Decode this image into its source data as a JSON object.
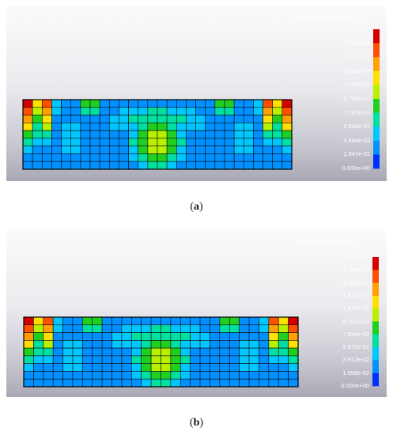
{
  "figures": [
    {
      "id": "a",
      "caption_letter": "a",
      "legend_title": "Resultant Displacement",
      "legend_ticks": [
        "1.947e-01",
        "1.752e-01",
        "1.557e-01",
        "1.363e-01",
        "1.168e-01",
        "9.734e-02",
        "7.787e-02",
        "5.840e-02",
        "3.894e-02",
        "1.947e-02",
        "0.000e+00"
      ],
      "colors": [
        "#d40000",
        "#ff5000",
        "#ffa000",
        "#ffe000",
        "#b8f000",
        "#20d020",
        "#00e0a0",
        "#00c8ff",
        "#0090ff",
        "#0030ff"
      ]
    },
    {
      "id": "b",
      "caption_letter": "b",
      "legend_title": "Resultant Displacement",
      "legend_ticks": [
        "1.958e-01",
        "1.763e-01",
        "1.567e-01",
        "1.371e-01",
        "1.175e-01",
        "9.792e-02",
        "7.834e-02",
        "5.875e-02",
        "3.917e-02",
        "1.958e-02",
        "0.000e+00"
      ],
      "colors": [
        "#d40000",
        "#ff5000",
        "#ffa000",
        "#ffe000",
        "#b8f000",
        "#20d020",
        "#00e0a0",
        "#00c8ff",
        "#0090ff",
        "#0030ff"
      ]
    }
  ]
}
